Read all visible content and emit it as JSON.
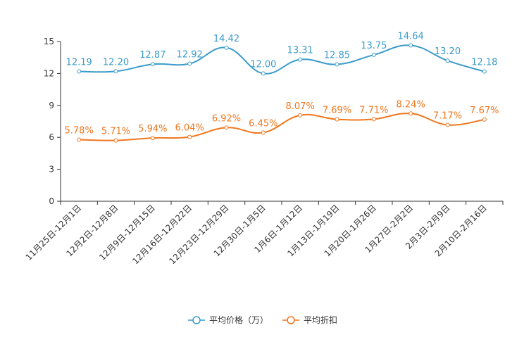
{
  "chart_data": {
    "type": "line",
    "categories": [
      "11月25日-12月1日",
      "12月2日-12月8日",
      "12月9日-12月15日",
      "12月16日-12月22日",
      "12月23日-12月29日",
      "12月30日-1月5日",
      "1月6日-1月12日",
      "1月13日-1月19日",
      "1月20日-1月26日",
      "1月27日-2月2日",
      "2月3日-2月9日",
      "2月10日-2月16日"
    ],
    "series": [
      {
        "name": "平均价格（万）",
        "color": "#3a9ccb",
        "values": [
          12.19,
          12.2,
          12.87,
          12.92,
          14.42,
          12.0,
          13.31,
          12.85,
          13.75,
          14.64,
          13.2,
          12.18
        ],
        "labels": [
          "12.19",
          "12.20",
          "12.87",
          "12.92",
          "14.42",
          "12.00",
          "13.31",
          "12.85",
          "13.75",
          "14.64",
          "13.20",
          "12.18"
        ]
      },
      {
        "name": "平均折扣",
        "color": "#f0771f",
        "values": [
          5.78,
          5.71,
          5.94,
          6.04,
          6.92,
          6.45,
          8.07,
          7.69,
          7.71,
          8.24,
          7.17,
          7.67
        ],
        "labels": [
          "5.78%",
          "5.71%",
          "5.94%",
          "6.04%",
          "6.92%",
          "6.45%",
          "8.07%",
          "7.69%",
          "7.71%",
          "8.24%",
          "7.17%",
          "7.67%"
        ]
      }
    ],
    "y_ticks": [
      "0",
      "3",
      "6",
      "9",
      "12",
      "15"
    ],
    "ylim": [
      0,
      15
    ],
    "title": "",
    "xlabel": "",
    "ylabel": "",
    "grid": false,
    "legend_position": "bottom-center"
  }
}
